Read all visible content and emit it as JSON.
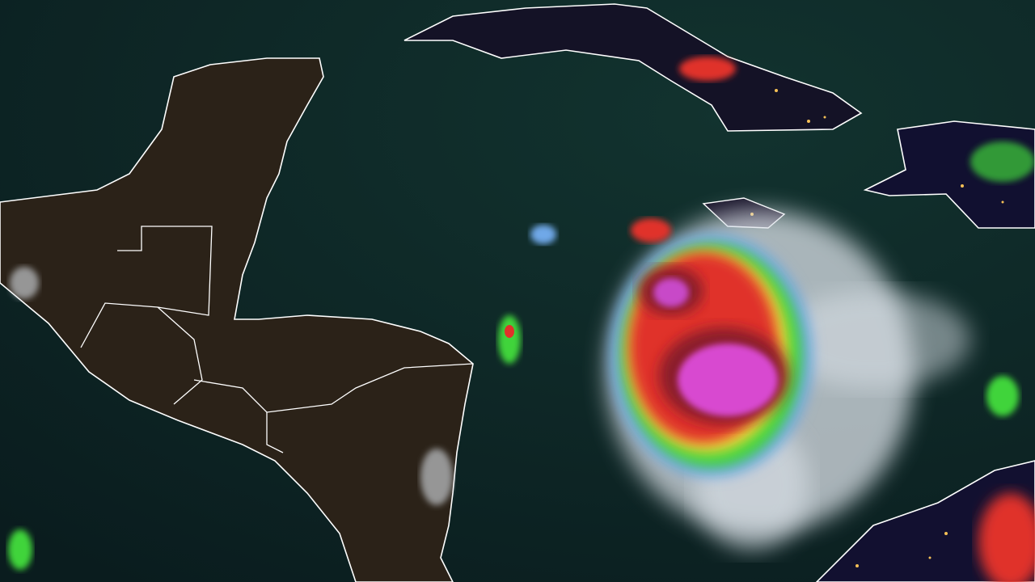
{
  "colors": {
    "ocean": "#0b1f21",
    "ocean_edge": "#10302f",
    "land": "#2a2219",
    "land_night": "#0d0d24",
    "border": "#ffffff",
    "city_lights": "#f5c056",
    "cloud": "#e6eaee",
    "rain_light": "#6fa8e8",
    "rain_moderate": "#3fd43a",
    "rain_heavy": "#f1e03a",
    "rain_intense": "#e0322a",
    "rain_extreme": "#d848d0"
  }
}
